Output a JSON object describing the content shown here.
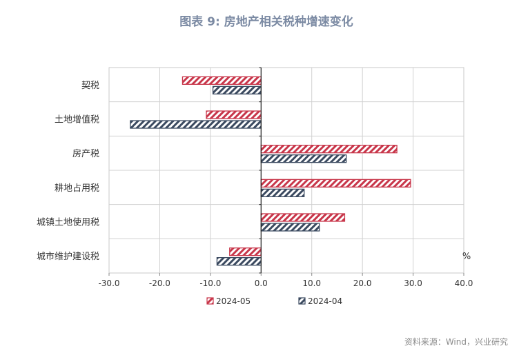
{
  "chart_data": {
    "type": "bar",
    "orientation": "horizontal",
    "title": "图表 9: 房地产相关税种增速变化",
    "categories": [
      "契税",
      "土地增值税",
      "房产税",
      "耕地占用税",
      "城镇土地使用税",
      "城市维护建设税"
    ],
    "series": [
      {
        "name": "2024-05",
        "values": [
          -15.5,
          -10.8,
          26.8,
          29.5,
          16.5,
          -6.2
        ],
        "color": "#c8364a",
        "pattern": "hatched"
      },
      {
        "name": "2024-04",
        "values": [
          -9.5,
          -25.8,
          16.8,
          8.5,
          11.5,
          -8.7
        ],
        "color": "#3b4a60",
        "pattern": "hatched"
      }
    ],
    "x_ticks": [
      "-30.0",
      "-20.0",
      "-10.0",
      "0.0",
      "10.0",
      "20.0",
      "30.0",
      "40.0"
    ],
    "xlim": [
      -30,
      40
    ],
    "unit": "%",
    "grid": true,
    "legend_position": "bottom",
    "source": "资料来源：Wind，兴业研究"
  }
}
